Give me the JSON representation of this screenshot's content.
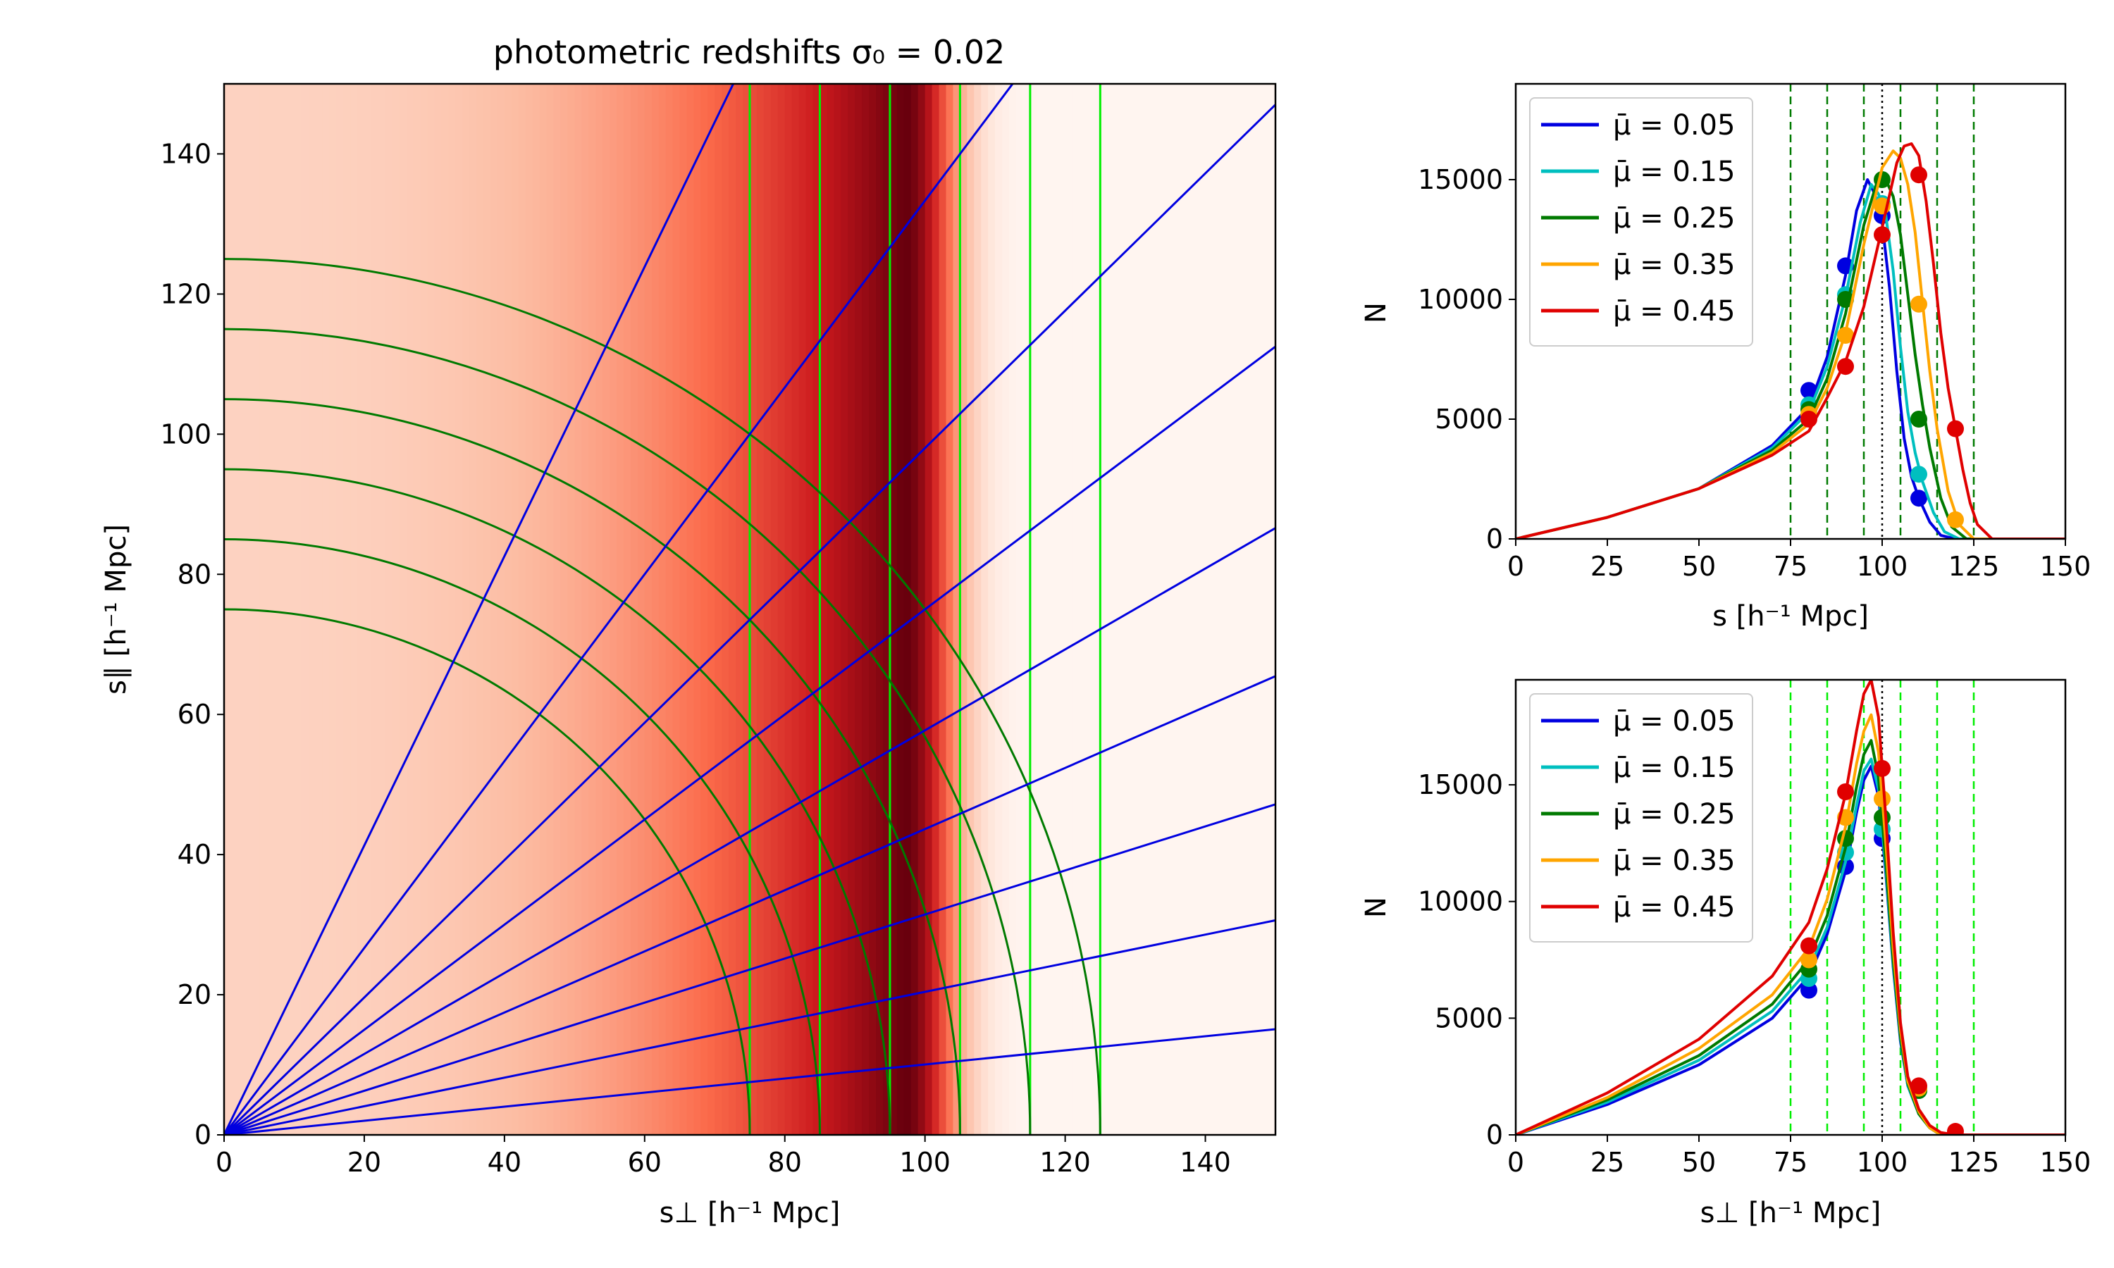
{
  "chart_data": [
    {
      "type": "heatmap",
      "title": "photometric redshifts σ₀ = 0.02",
      "xlabel": "s⊥ [h⁻¹ Mpc]",
      "ylabel": "s∥ [h⁻¹ Mpc]",
      "xlim": [
        0,
        150
      ],
      "ylim": [
        0,
        150
      ],
      "xticks": [
        0,
        20,
        40,
        60,
        80,
        100,
        120,
        140
      ],
      "yticks": [
        0,
        20,
        40,
        60,
        80,
        100,
        120,
        140
      ],
      "colormap": "Reds",
      "density_peak_s_perp": 97,
      "vertical_lines": {
        "color": "#00ee00",
        "x": [
          75,
          85,
          95,
          105,
          115,
          125
        ]
      },
      "arcs": {
        "color": "#007a00",
        "radii": [
          75,
          85,
          95,
          105,
          115,
          125
        ]
      },
      "rays": {
        "color": "#0000e0",
        "mu": [
          0.1,
          0.2,
          0.3,
          0.4,
          0.5,
          0.6,
          0.7,
          0.8,
          0.9
        ]
      }
    },
    {
      "type": "line",
      "title": "",
      "xlabel": "s [h⁻¹ Mpc]",
      "ylabel": "N",
      "xlim": [
        0,
        150
      ],
      "ylim": [
        0,
        19000
      ],
      "xticks": [
        0,
        25,
        50,
        75,
        100,
        125,
        150
      ],
      "yticks": [
        0,
        5000,
        10000,
        15000
      ],
      "legend": "top-left",
      "vlines_dashed": {
        "color": "#007a00",
        "x": [
          75,
          85,
          95,
          105,
          115,
          125
        ]
      },
      "vline_dotted": {
        "color": "#000000",
        "x": 100
      },
      "series": [
        {
          "name": "μ̄ = 0.05",
          "color": "#0000e0",
          "x": [
            0,
            25,
            50,
            70,
            80,
            85,
            90,
            93,
            96,
            98,
            100,
            102,
            104,
            106,
            108,
            110,
            113,
            116,
            120,
            150
          ],
          "y": [
            0,
            900,
            2100,
            3900,
            5500,
            7600,
            11000,
            13700,
            15000,
            14400,
            13200,
            10500,
            7000,
            4200,
            2600,
            1700,
            700,
            150,
            0,
            0
          ],
          "points_x": [
            80,
            90,
            100,
            110
          ],
          "points_y": [
            6200,
            11400,
            13500,
            1700
          ]
        },
        {
          "name": "μ̄ = 0.15",
          "color": "#00bfbf",
          "x": [
            0,
            25,
            50,
            70,
            80,
            85,
            90,
            94,
            97,
            99,
            101,
            103,
            105,
            107,
            109,
            111,
            114,
            117,
            121,
            150
          ],
          "y": [
            0,
            900,
            2100,
            3800,
            5300,
            7200,
            10100,
            13200,
            14800,
            14400,
            13500,
            11200,
            8000,
            5300,
            3600,
            2400,
            1100,
            300,
            0,
            0
          ],
          "points_x": [
            80,
            90,
            100,
            110
          ],
          "points_y": [
            5600,
            10200,
            14000,
            2700
          ]
        },
        {
          "name": "μ̄ = 0.25",
          "color": "#007a00",
          "x": [
            0,
            25,
            50,
            70,
            80,
            85,
            90,
            95,
            99,
            101,
            103,
            105,
            107,
            109,
            111,
            113,
            116,
            119,
            123,
            150
          ],
          "y": [
            0,
            900,
            2100,
            3700,
            5000,
            6700,
            9400,
            13100,
            15100,
            15000,
            14300,
            12700,
            10200,
            7700,
            5600,
            3800,
            1700,
            500,
            0,
            0
          ],
          "points_x": [
            80,
            90,
            100,
            110
          ],
          "points_y": [
            5400,
            10000,
            15000,
            5000
          ]
        },
        {
          "name": "μ̄ = 0.35",
          "color": "#ffa500",
          "x": [
            0,
            25,
            50,
            70,
            80,
            85,
            90,
            95,
            100,
            103,
            105,
            107,
            109,
            111,
            113,
            115,
            118,
            121,
            125,
            150
          ],
          "y": [
            0,
            900,
            2100,
            3600,
            4800,
            6300,
            8600,
            12300,
            15500,
            16200,
            15900,
            14800,
            12800,
            9900,
            7000,
            4600,
            2000,
            600,
            0,
            0
          ],
          "points_x": [
            80,
            90,
            100,
            110,
            120
          ],
          "points_y": [
            5200,
            8500,
            13900,
            9800,
            800
          ]
        },
        {
          "name": "μ̄ = 0.45",
          "color": "#e00000",
          "x": [
            0,
            25,
            50,
            70,
            80,
            85,
            90,
            95,
            100,
            104,
            106,
            108,
            110,
            112,
            114,
            116,
            118,
            120,
            122,
            124,
            126,
            130,
            150
          ],
          "y": [
            0,
            900,
            2100,
            3500,
            4500,
            5900,
            7400,
            9700,
            13000,
            15700,
            16400,
            16500,
            16000,
            14100,
            11500,
            8600,
            6300,
            4600,
            2900,
            1500,
            600,
            0,
            0
          ],
          "points_x": [
            80,
            90,
            100,
            110,
            120
          ],
          "points_y": [
            5000,
            7200,
            12700,
            15200,
            4600
          ]
        }
      ]
    },
    {
      "type": "line",
      "title": "",
      "xlabel": "s⊥ [h⁻¹ Mpc]",
      "ylabel": "N",
      "xlim": [
        0,
        150
      ],
      "ylim": [
        0,
        19500
      ],
      "xticks": [
        0,
        25,
        50,
        75,
        100,
        125,
        150
      ],
      "yticks": [
        0,
        5000,
        10000,
        15000
      ],
      "legend": "top-left",
      "vlines_dashed": {
        "color": "#00ee00",
        "x": [
          75,
          85,
          95,
          105,
          115,
          125
        ]
      },
      "vline_dotted": {
        "color": "#000000",
        "x": 100
      },
      "series": [
        {
          "name": "μ̄ = 0.05",
          "color": "#0000e0",
          "x": [
            0,
            25,
            50,
            70,
            80,
            85,
            90,
            93,
            95,
            97,
            99,
            101,
            103,
            105,
            107,
            110,
            113,
            116,
            150
          ],
          "y": [
            0,
            1300,
            3000,
            5000,
            6800,
            8600,
            11300,
            13800,
            15200,
            15800,
            14500,
            11200,
            7200,
            4000,
            2100,
            900,
            300,
            0,
            0
          ],
          "points_x": [
            80,
            90,
            100,
            110
          ],
          "points_y": [
            6200,
            11500,
            12700,
            1900
          ]
        },
        {
          "name": "μ̄ = 0.15",
          "color": "#00bfbf",
          "x": [
            0,
            25,
            50,
            70,
            80,
            85,
            90,
            93,
            95,
            97,
            99,
            101,
            103,
            105,
            107,
            110,
            113,
            116,
            150
          ],
          "y": [
            0,
            1400,
            3200,
            5300,
            7100,
            8900,
            11700,
            14100,
            15600,
            16100,
            14800,
            11400,
            7300,
            4100,
            2100,
            900,
            300,
            0,
            0
          ],
          "points_x": [
            80,
            90,
            100,
            110
          ],
          "points_y": [
            6700,
            12100,
            13100,
            1900
          ]
        },
        {
          "name": "μ̄ = 0.25",
          "color": "#007a00",
          "x": [
            0,
            25,
            50,
            70,
            80,
            85,
            90,
            93,
            95,
            97,
            99,
            101,
            103,
            105,
            107,
            110,
            113,
            116,
            150
          ],
          "y": [
            0,
            1500,
            3400,
            5600,
            7500,
            9400,
            12300,
            14900,
            16300,
            16900,
            15300,
            11700,
            7500,
            4200,
            2200,
            900,
            300,
            0,
            0
          ],
          "points_x": [
            80,
            90,
            100,
            110
          ],
          "points_y": [
            7100,
            12700,
            13600,
            1900
          ]
        },
        {
          "name": "μ̄ = 0.35",
          "color": "#ffa500",
          "x": [
            0,
            25,
            50,
            70,
            80,
            85,
            90,
            93,
            95,
            97,
            99,
            101,
            103,
            105,
            107,
            110,
            113,
            116,
            150
          ],
          "y": [
            0,
            1600,
            3700,
            6000,
            8000,
            10100,
            13200,
            15900,
            17300,
            18000,
            16400,
            12500,
            8000,
            4500,
            2300,
            1000,
            300,
            0,
            0
          ],
          "points_x": [
            80,
            90,
            100,
            110
          ],
          "points_y": [
            7500,
            13600,
            14400,
            2000
          ]
        },
        {
          "name": "μ̄ = 0.45",
          "color": "#e00000",
          "x": [
            0,
            25,
            50,
            70,
            80,
            85,
            90,
            93,
            95,
            97,
            99,
            101,
            103,
            105,
            107,
            110,
            113,
            116,
            120,
            150
          ],
          "y": [
            0,
            1800,
            4100,
            6800,
            9100,
            11400,
            14600,
            17300,
            18900,
            19500,
            17900,
            13600,
            8700,
            4800,
            2500,
            1100,
            400,
            100,
            0,
            0
          ],
          "points_x": [
            80,
            90,
            100,
            110,
            120
          ],
          "points_y": [
            8100,
            14700,
            15700,
            2100,
            150
          ]
        }
      ]
    }
  ]
}
